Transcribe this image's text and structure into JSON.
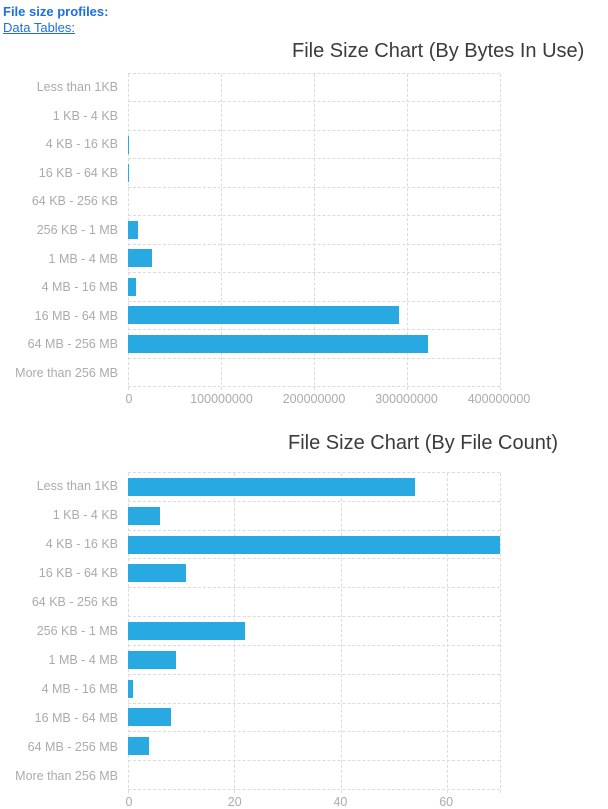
{
  "header": {
    "title": "File size profiles:",
    "link_label": "Data Tables:"
  },
  "colors": {
    "link_blue": "#1E6FE0",
    "bar_blue": "#29A9E1",
    "grid_gray": "#DBDBDB",
    "axis_text_gray": "#ABABAB",
    "title_text": "#3B3B3B"
  },
  "chart_data": [
    {
      "type": "bar",
      "orientation": "horizontal",
      "title": "File Size Chart (By Bytes In Use)",
      "xlabel": "",
      "ylabel": "",
      "legend": "none",
      "grid": "dashed",
      "categories": [
        "Less than 1KB",
        "1 KB - 4 KB",
        "4 KB - 16 KB",
        "16 KB - 64 KB",
        "64 KB - 256 KB",
        "256 KB - 1 MB",
        "1 MB - 4 MB",
        "4 MB - 16 MB",
        "16 MB - 64 MB",
        "64 MB - 256 MB",
        "More than 256 MB"
      ],
      "values": [
        0,
        0,
        1600000,
        900000,
        0,
        10800000,
        26000000,
        8600000,
        291000000,
        323000000,
        0
      ],
      "xlim": [
        0,
        400000000
      ],
      "xticks": [
        0,
        100000000,
        200000000,
        300000000,
        400000000
      ],
      "xtick_labels": [
        "0",
        "100000000",
        "200000000",
        "300000000",
        "400000000"
      ]
    },
    {
      "type": "bar",
      "orientation": "horizontal",
      "title": "File Size Chart (By File Count)",
      "xlabel": "",
      "ylabel": "",
      "legend": "none",
      "grid": "dashed",
      "categories": [
        "Less than 1KB",
        "1 KB - 4 KB",
        "4 KB - 16 KB",
        "16 KB - 64 KB",
        "64 KB - 256 KB",
        "256 KB - 1 MB",
        "1 MB - 4 MB",
        "4 MB - 16 MB",
        "16 MB - 64 MB",
        "64 MB - 256 MB",
        "More than 256 MB"
      ],
      "values": [
        54,
        6,
        70,
        11,
        0,
        22,
        9,
        1,
        8,
        4,
        0
      ],
      "xlim": [
        0,
        70
      ],
      "xticks": [
        0,
        20,
        40,
        60
      ],
      "xtick_labels": [
        "0",
        "20",
        "40",
        "60"
      ]
    }
  ]
}
